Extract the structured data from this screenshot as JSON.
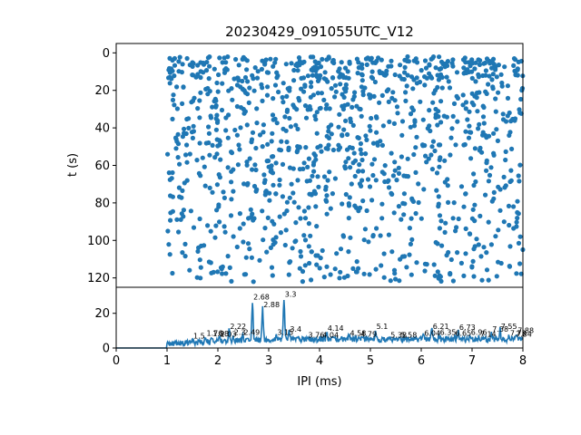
{
  "chart_data": [
    {
      "type": "scatter",
      "title": "20230429_091055UTC_V12",
      "xlabel": "",
      "ylabel": "t (s)",
      "xlim": [
        0,
        8
      ],
      "ylim": [
        125,
        -5
      ],
      "y_inverted": true,
      "yticks": [
        0,
        20,
        40,
        60,
        80,
        100,
        120
      ],
      "marker_color": "#1f77b4",
      "seed": 20230429,
      "point_count": 1200,
      "x_range": [
        1.0,
        8.0
      ],
      "y_range": [
        2,
        122
      ]
    },
    {
      "type": "line",
      "xlabel": "IPI (ms)",
      "ylabel": "",
      "xlim": [
        0,
        8
      ],
      "ylim": [
        0,
        35
      ],
      "xticks": [
        0,
        1,
        2,
        3,
        4,
        5,
        6,
        7,
        8
      ],
      "yticks": [
        0,
        20
      ],
      "line_color": "#1f77b4",
      "peaks": [
        {
          "x": 1.5,
          "y": 5.0,
          "label": "1.5"
        },
        {
          "x": 1.76,
          "y": 6.5,
          "label": "1.76"
        },
        {
          "x": 1.88,
          "y": 6.2,
          "label": "1.88"
        },
        {
          "x": 2.03,
          "y": 6.0,
          "label": "2.03"
        },
        {
          "x": 2.22,
          "y": 10.5,
          "label": "2.22"
        },
        {
          "x": 2.3,
          "y": 7.0,
          "label": "2.3"
        },
        {
          "x": 2.49,
          "y": 7.0,
          "label": "2.49"
        },
        {
          "x": 2.68,
          "y": 27.5,
          "label": "2.68"
        },
        {
          "x": 2.88,
          "y": 23.0,
          "label": "2.88"
        },
        {
          "x": 3.3,
          "y": 29.0,
          "label": "3.3"
        },
        {
          "x": 3.15,
          "y": 7.0,
          "label": "3.15"
        },
        {
          "x": 3.4,
          "y": 9.0,
          "label": "3.4"
        },
        {
          "x": 3.76,
          "y": 5.5,
          "label": "3.76"
        },
        {
          "x": 4.04,
          "y": 5.5,
          "label": "4.04"
        },
        {
          "x": 4.14,
          "y": 9.5,
          "label": "4.14"
        },
        {
          "x": 4.58,
          "y": 6.5,
          "label": "4.58"
        },
        {
          "x": 4.79,
          "y": 6.0,
          "label": "4.79"
        },
        {
          "x": 5.1,
          "y": 10.5,
          "label": "5.1"
        },
        {
          "x": 5.38,
          "y": 5.5,
          "label": "5.38"
        },
        {
          "x": 5.58,
          "y": 5.5,
          "label": "5.58"
        },
        {
          "x": 6.04,
          "y": 6.5,
          "label": "6.04"
        },
        {
          "x": 6.21,
          "y": 10.5,
          "label": "6.21"
        },
        {
          "x": 6.35,
          "y": 7.0,
          "label": "6.35"
        },
        {
          "x": 6.65,
          "y": 6.5,
          "label": "6.65"
        },
        {
          "x": 6.73,
          "y": 10.0,
          "label": "6.73"
        },
        {
          "x": 6.96,
          "y": 7.0,
          "label": "6.96"
        },
        {
          "x": 7.14,
          "y": 6.0,
          "label": "7.14"
        },
        {
          "x": 7.38,
          "y": 9.0,
          "label": "7.38"
        },
        {
          "x": 7.55,
          "y": 10.5,
          "label": "7.55"
        },
        {
          "x": 7.73,
          "y": 6.5,
          "label": "7.73"
        },
        {
          "x": 7.88,
          "y": 8.0,
          "label": "7.88"
        },
        {
          "x": 7.84,
          "y": 6.0,
          "label": "7.84"
        }
      ]
    }
  ]
}
